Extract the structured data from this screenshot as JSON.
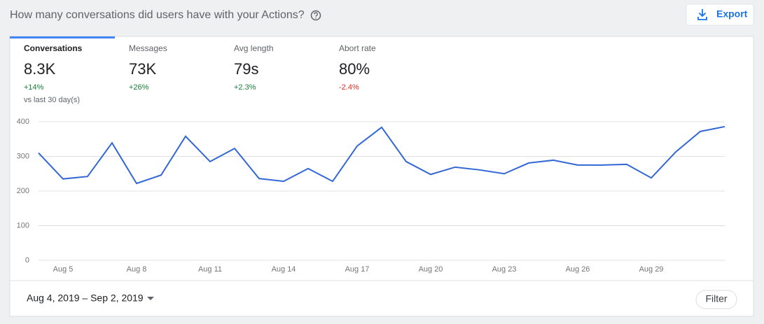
{
  "header": {
    "title": "How many conversations did users have with your Actions?",
    "export_button": "Export"
  },
  "tabs": [
    {
      "label": "Conversations",
      "value": "8.3K",
      "change": "+14%",
      "comparison": "vs last 30 day(s)"
    },
    {
      "label": "Messages",
      "value": "73K",
      "change": "+26%"
    },
    {
      "label": "Avg length",
      "value": "79s",
      "change": "+2.3%"
    },
    {
      "label": "Abort rate",
      "value": "80%",
      "change": "-2.4%"
    }
  ],
  "chart_data": {
    "type": "line",
    "color": "#3367d6",
    "categories": [
      null,
      "Aug 5",
      null,
      null,
      "Aug 8",
      null,
      null,
      "Aug 11",
      null,
      null,
      "Aug 14",
      null,
      null,
      "Aug 17",
      null,
      null,
      "Aug 20",
      null,
      null,
      "Aug 23",
      null,
      null,
      "Aug 26",
      null,
      null,
      "Aug 29",
      null,
      null,
      null
    ],
    "values": [
      310,
      235,
      242,
      339,
      222,
      246,
      358,
      285,
      323,
      236,
      228,
      265,
      228,
      330,
      384,
      285,
      248,
      269,
      261,
      250,
      281,
      289,
      275,
      275,
      277,
      238,
      313,
      372,
      386
    ],
    "ylim": [
      0,
      400
    ],
    "yticks": [
      0,
      100,
      200,
      300,
      400
    ],
    "grid": true
  },
  "footer": {
    "date_range": "Aug 4, 2019 – Sep 2, 2019",
    "filter_button": "Filter"
  }
}
